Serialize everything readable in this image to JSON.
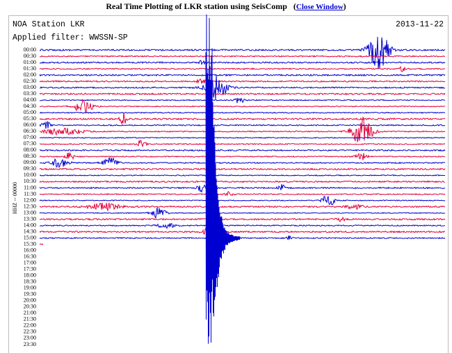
{
  "header": {
    "title": "Real Time Plotting of LKR station using SeisComp",
    "link_open": "(",
    "link": "Close Window",
    "link_close": ")",
    "station": "NOA Station LKR",
    "date": "2013-11-22",
    "filter": "Applied filter: WWSSN-SP",
    "channel": "HHZ -- 00000"
  },
  "rows": [
    "00:00",
    "00:30",
    "01:00",
    "01:30",
    "02:00",
    "02:30",
    "03:00",
    "03:30",
    "04:00",
    "04:30",
    "05:00",
    "05:30",
    "06:00",
    "06:30",
    "07:00",
    "07:30",
    "08:00",
    "08:30",
    "09:00",
    "09:30",
    "10:00",
    "10:30",
    "11:00",
    "11:30",
    "12:00",
    "12:30",
    "13:00",
    "13:30",
    "14:00",
    "14:30",
    "15:00",
    "15:30",
    "16:00",
    "16:30",
    "17:00",
    "17:30",
    "18:00",
    "18:30",
    "19:00",
    "19:30",
    "20:00",
    "20:30",
    "21:00",
    "21:30",
    "22:00",
    "22:30",
    "23:00",
    "23:30"
  ]
}
